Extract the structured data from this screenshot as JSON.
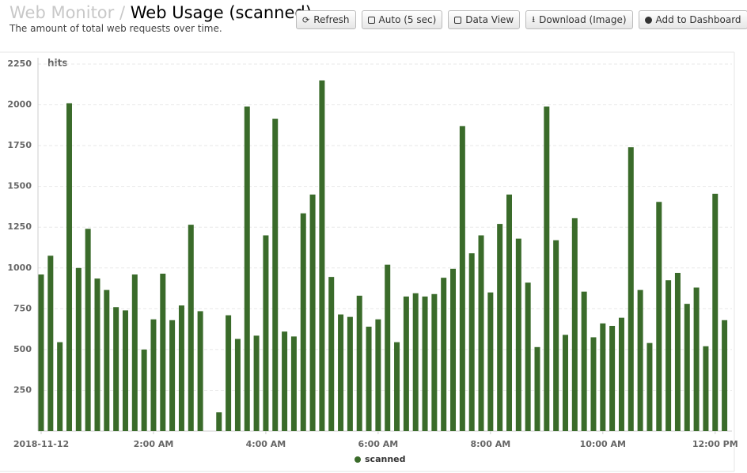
{
  "header": {
    "section": "Web Monitor",
    "separator": "/",
    "title": "Web Usage (scanned)",
    "subtitle": "The amount of total web requests over time."
  },
  "toolbar": [
    "Refresh",
    "Auto (5 sec)",
    "Data View",
    "Download (Image)",
    "Add to Dashboard"
  ],
  "chart_data": {
    "type": "bar",
    "y_label": "hits",
    "categories": [
      "2018-11-12",
      null,
      null,
      null,
      null,
      null,
      null,
      null,
      null,
      null,
      null,
      null,
      "2:00 AM",
      null,
      null,
      null,
      null,
      null,
      null,
      null,
      null,
      null,
      null,
      null,
      "4:00 AM",
      null,
      null,
      null,
      null,
      null,
      null,
      null,
      null,
      null,
      null,
      null,
      "6:00 AM",
      null,
      null,
      null,
      null,
      null,
      null,
      null,
      null,
      null,
      null,
      null,
      "8:00 AM",
      null,
      null,
      null,
      null,
      null,
      null,
      null,
      null,
      null,
      null,
      null,
      "10:00 AM",
      null,
      null,
      null,
      null,
      null,
      null,
      null,
      null,
      null,
      null,
      null,
      "12:00 PM",
      null
    ],
    "series": [
      {
        "name": "scanned",
        "color": "#3a6b2a",
        "values": [
          960,
          1075,
          545,
          2010,
          1000,
          1240,
          935,
          865,
          760,
          740,
          960,
          500,
          685,
          965,
          680,
          770,
          1265,
          735,
          null,
          115,
          710,
          565,
          1990,
          585,
          1200,
          1915,
          610,
          580,
          1335,
          1450,
          2150,
          945,
          715,
          700,
          830,
          640,
          685,
          1020,
          545,
          825,
          845,
          825,
          840,
          940,
          995,
          1870,
          1090,
          1200,
          850,
          1270,
          1450,
          1180,
          910,
          515,
          1990,
          1170,
          590,
          1305,
          855,
          575,
          660,
          645,
          695,
          1740,
          865,
          540,
          1405,
          925,
          970,
          780,
          880,
          520,
          1455,
          680
        ]
      }
    ],
    "ylim": [
      0,
      2250
    ],
    "yticks": [
      250,
      500,
      750,
      1000,
      1250,
      1500,
      1750,
      2000,
      2250
    ],
    "grid": true
  }
}
